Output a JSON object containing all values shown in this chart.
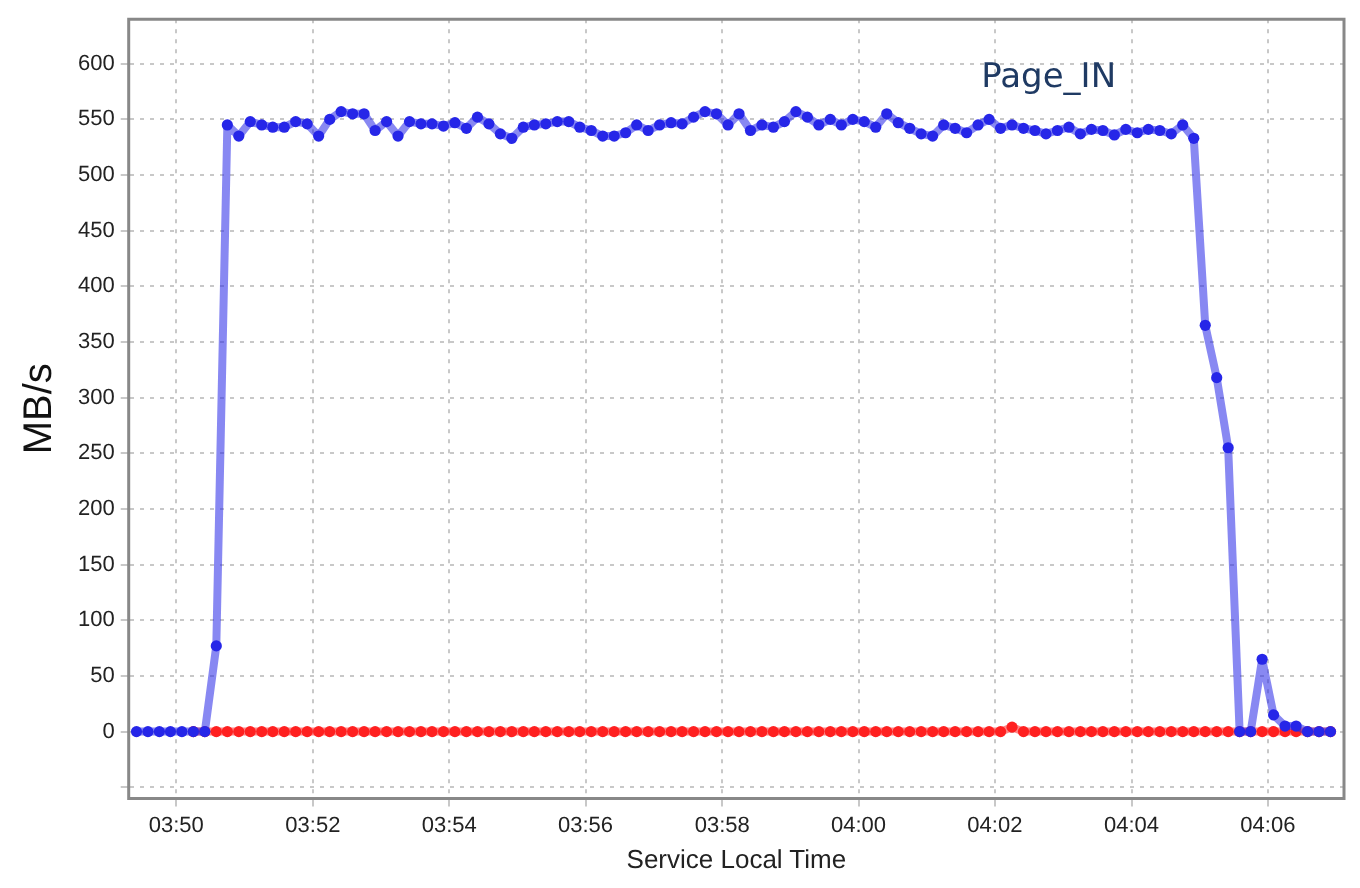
{
  "chart_data": {
    "type": "line",
    "xlabel": "Service Local Time",
    "ylabel": "MB/s",
    "x": [
      3.8236,
      3.8264,
      3.8292,
      3.8319,
      3.8347,
      3.8375,
      3.8403,
      3.8431,
      3.8458,
      3.8486,
      3.8514,
      3.8542,
      3.8569,
      3.8597,
      3.8625,
      3.8653,
      3.8681,
      3.8708,
      3.8736,
      3.8764,
      3.8792,
      3.8819,
      3.8847,
      3.8875,
      3.8903,
      3.8931,
      3.8958,
      3.8986,
      3.9014,
      3.9042,
      3.9069,
      3.9097,
      3.9125,
      3.9153,
      3.9181,
      3.9208,
      3.9236,
      3.9264,
      3.9292,
      3.9319,
      3.9347,
      3.9375,
      3.9403,
      3.9431,
      3.9458,
      3.9486,
      3.9514,
      3.9542,
      3.9569,
      3.9597,
      3.9625,
      3.9653,
      3.9681,
      3.9708,
      3.9736,
      3.9764,
      3.9792,
      3.9819,
      3.9847,
      3.9875,
      3.9903,
      3.9931,
      3.9958,
      3.9986,
      4.0014,
      4.0042,
      4.0069,
      4.0097,
      4.0125,
      4.0153,
      4.0181,
      4.0208,
      4.0236,
      4.0264,
      4.0292,
      4.0319,
      4.0347,
      4.0375,
      4.0403,
      4.0431,
      4.0458,
      4.0486,
      4.0514,
      4.0542,
      4.0569,
      4.0597,
      4.0625,
      4.0653,
      4.0681,
      4.0708,
      4.0736,
      4.0764,
      4.0792,
      4.0819,
      4.0847,
      4.0875,
      4.0903,
      4.0931,
      4.0958,
      4.0986,
      4.1014,
      4.1042,
      4.1069,
      4.1097,
      4.1125,
      4.1153
    ],
    "series": [
      {
        "name": "Page_IN",
        "color": "#2626e8",
        "values": [
          0,
          0,
          0,
          0,
          0,
          0,
          0,
          77,
          545,
          535,
          548,
          545,
          543,
          543,
          548,
          546,
          535,
          550,
          557,
          555,
          555,
          540,
          548,
          535,
          548,
          546,
          546,
          544,
          547,
          542,
          552,
          546,
          537,
          533,
          543,
          545,
          546,
          548,
          548,
          543,
          540,
          535,
          535,
          538,
          545,
          540,
          545,
          547,
          546,
          552,
          557,
          555,
          545,
          555,
          540,
          545,
          543,
          548,
          557,
          552,
          545,
          550,
          545,
          550,
          548,
          543,
          555,
          547,
          542,
          537,
          535,
          545,
          542,
          538,
          545,
          550,
          542,
          545,
          542,
          540,
          537,
          540,
          543,
          537,
          541,
          540,
          536,
          541,
          538,
          541,
          540,
          537,
          545,
          533,
          365,
          318,
          255,
          0,
          0,
          65,
          15,
          5,
          5,
          0,
          0,
          0
        ]
      },
      {
        "color": "#ff2020",
        "values": [
          null,
          null,
          null,
          null,
          null,
          0,
          0,
          0,
          0,
          0,
          0,
          0,
          0,
          0,
          0,
          0,
          0,
          0,
          0,
          0,
          0,
          0,
          0,
          0,
          0,
          0,
          0,
          0,
          0,
          0,
          0,
          0,
          0,
          0,
          0,
          0,
          0,
          0,
          0,
          0,
          0,
          0,
          0,
          0,
          0,
          0,
          0,
          0,
          0,
          0,
          0,
          0,
          0,
          0,
          0,
          0,
          0,
          0,
          0,
          0,
          0,
          0,
          0,
          0,
          0,
          0,
          0,
          0,
          0,
          0,
          0,
          0,
          0,
          0,
          0,
          0,
          0,
          4,
          0,
          0,
          0,
          0,
          0,
          0,
          0,
          0,
          0,
          0,
          0,
          0,
          0,
          0,
          0,
          0,
          0,
          0,
          0,
          0,
          0,
          0,
          0,
          0,
          0,
          0,
          0,
          0
        ]
      }
    ],
    "xlim": [
      3.8217,
      4.1186
    ],
    "xticks": [
      {
        "value": 3.8333,
        "label": "03:50"
      },
      {
        "value": 3.8667,
        "label": "03:52"
      },
      {
        "value": 3.9,
        "label": "03:54"
      },
      {
        "value": 3.9333,
        "label": "03:56"
      },
      {
        "value": 3.9667,
        "label": "03:58"
      },
      {
        "value": 4,
        "label": "04:00"
      },
      {
        "value": 4.0333,
        "label": "04:02"
      },
      {
        "value": 4.0667,
        "label": "04:04"
      },
      {
        "value": 4.1,
        "label": "04:06"
      }
    ],
    "ylim": [
      -60,
      640
    ],
    "yticks": [
      {
        "value": -50,
        "label": null
      },
      0,
      50,
      100,
      150,
      200,
      250,
      300,
      350,
      400,
      450,
      500,
      550,
      600
    ],
    "grid": true,
    "legend": false,
    "marker": "circle",
    "line_style": "solid"
  }
}
